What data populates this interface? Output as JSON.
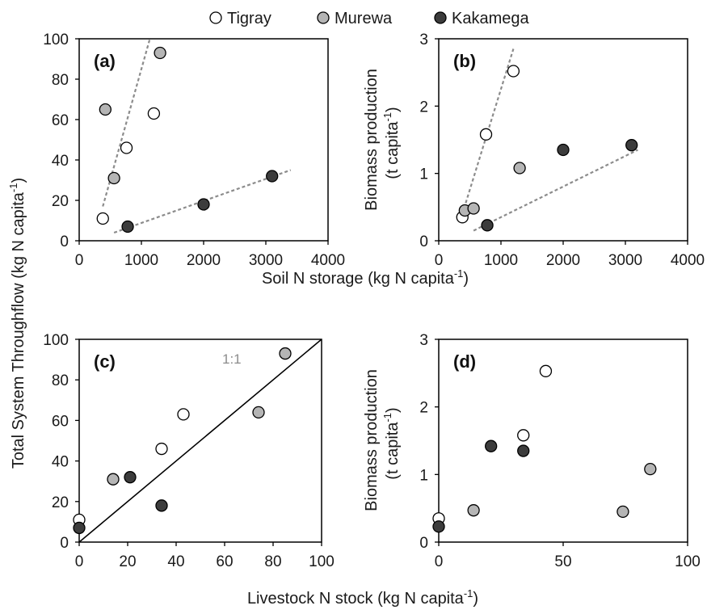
{
  "colors": {
    "Tigray": "#ffffff",
    "Murewa": "#b5b5b5",
    "Kakamega": "#3c3c3c",
    "trend_line": "#8c8c8c",
    "one_to_one_label": "#8c8c8c"
  },
  "legend": {
    "placement": "top-center",
    "entries": [
      "Tigray",
      "Murewa",
      "Kakamega"
    ]
  },
  "shared_labels": {
    "left_ylabel": "Total System Throughflow",
    "left_ylabel_unit": "(kg N capita",
    "top_xlabel": "Soil N storage (kg N capita",
    "bottom_xlabel": "Livestock N stock (kg N capita",
    "superscript": "-1",
    "close_paren": ")"
  },
  "chart_data": [
    {
      "panel": "(a)",
      "type": "scatter",
      "xlim": [
        0,
        4000
      ],
      "ylim": [
        0,
        100
      ],
      "xticks": [
        "0",
        "1000",
        "2000",
        "3000",
        "4000"
      ],
      "yticks": [
        "0",
        "20",
        "40",
        "60",
        "80",
        "100"
      ],
      "xlabel": "Soil N storage (kg N capita-1)",
      "ylabel": "Total System Throughflow (kg N capita-1)",
      "series": [
        {
          "name": "Tigray",
          "points": [
            [
              380,
              11
            ],
            [
              760,
              46
            ],
            [
              1200,
              63
            ]
          ]
        },
        {
          "name": "Murewa",
          "points": [
            [
              420,
              65
            ],
            [
              560,
              31
            ],
            [
              1300,
              93
            ]
          ]
        },
        {
          "name": "Kakamega",
          "points": [
            [
              780,
              7
            ],
            [
              2000,
              18
            ],
            [
              3100,
              32
            ]
          ]
        }
      ],
      "trendlines": [
        {
          "from": [
            380,
            17
          ],
          "to": [
            1200,
            107
          ]
        },
        {
          "from": [
            560,
            4
          ],
          "to": [
            3400,
            35
          ]
        }
      ]
    },
    {
      "panel": "(b)",
      "type": "scatter",
      "xlim": [
        0,
        4000
      ],
      "ylim": [
        0,
        3
      ],
      "xticks": [
        "0",
        "1000",
        "2000",
        "3000",
        "4000"
      ],
      "yticks": [
        "0",
        "1",
        "2",
        "3"
      ],
      "xlabel": "Soil N storage (kg N capita-1)",
      "ylabel": "Biomass production (t capita-1)",
      "series": [
        {
          "name": "Tigray",
          "points": [
            [
              380,
              0.35
            ],
            [
              760,
              1.58
            ],
            [
              1200,
              2.52
            ]
          ]
        },
        {
          "name": "Murewa",
          "points": [
            [
              420,
              0.45
            ],
            [
              560,
              0.48
            ],
            [
              1300,
              1.08
            ]
          ]
        },
        {
          "name": "Kakamega",
          "points": [
            [
              780,
              0.23
            ],
            [
              2000,
              1.35
            ],
            [
              3100,
              1.42
            ]
          ]
        }
      ],
      "trendlines": [
        {
          "from": [
            380,
            0.4
          ],
          "to": [
            1200,
            2.85
          ]
        },
        {
          "from": [
            560,
            0.15
          ],
          "to": [
            3200,
            1.35
          ]
        }
      ]
    },
    {
      "panel": "(c)",
      "type": "scatter",
      "xlim": [
        0,
        100
      ],
      "ylim": [
        0,
        100
      ],
      "xticks": [
        "0",
        "20",
        "40",
        "60",
        "80",
        "100"
      ],
      "yticks": [
        "0",
        "20",
        "40",
        "60",
        "80",
        "100"
      ],
      "xlabel": "Livestock N stock (kg N capita-1)",
      "ylabel": "Total System Throughflow (kg N capita-1)",
      "annotation": "1:1",
      "reference_line": {
        "from": [
          0,
          0
        ],
        "to": [
          100,
          100
        ]
      },
      "series": [
        {
          "name": "Tigray",
          "points": [
            [
              0,
              11
            ],
            [
              34,
              46
            ],
            [
              43,
              63
            ]
          ]
        },
        {
          "name": "Murewa",
          "points": [
            [
              14,
              31
            ],
            [
              74,
              64
            ],
            [
              85,
              93
            ]
          ]
        },
        {
          "name": "Kakamega",
          "points": [
            [
              0,
              7
            ],
            [
              21,
              32
            ],
            [
              34,
              18
            ]
          ]
        }
      ]
    },
    {
      "panel": "(d)",
      "type": "scatter",
      "xlim": [
        0,
        100
      ],
      "ylim": [
        0,
        3
      ],
      "xticks": [
        "0",
        "50",
        "100"
      ],
      "yticks": [
        "0",
        "1",
        "2",
        "3"
      ],
      "xlabel": "Livestock N stock (kg N capita-1)",
      "ylabel": "Biomass production (t capita-1)",
      "series": [
        {
          "name": "Tigray",
          "points": [
            [
              0,
              0.35
            ],
            [
              34,
              1.58
            ],
            [
              43,
              2.53
            ]
          ]
        },
        {
          "name": "Murewa",
          "points": [
            [
              14,
              0.47
            ],
            [
              74,
              0.45
            ],
            [
              85,
              1.08
            ]
          ]
        },
        {
          "name": "Kakamega",
          "points": [
            [
              0,
              0.23
            ],
            [
              21,
              1.42
            ],
            [
              34,
              1.35
            ]
          ]
        }
      ]
    }
  ]
}
